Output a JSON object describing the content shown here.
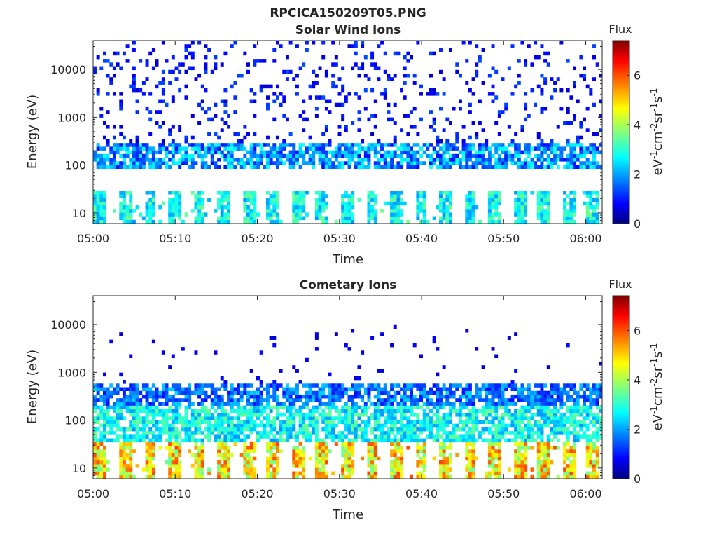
{
  "figure_title": "RPCICA150209T05.PNG",
  "chart_data": [
    {
      "type": "heatmap",
      "title": "Solar Wind Ions",
      "xlabel": "Time",
      "ylabel": "Energy (eV)",
      "y_scale": "log",
      "ylim": [
        6,
        40000
      ],
      "xlim": [
        "05:00",
        "06:02"
      ],
      "x_ticks": [
        "05:00",
        "05:10",
        "05:20",
        "05:30",
        "05:40",
        "05:50",
        "06:00"
      ],
      "y_ticks": [
        "10",
        "100",
        "1000",
        "10000"
      ],
      "y_tick_values": [
        10,
        100,
        1000,
        10000
      ],
      "colorbar": {
        "title": "Flux",
        "label": "eV-1cm-2sr-1s-1",
        "range": [
          0,
          7.4
        ],
        "ticks": [
          "0",
          "2",
          "4",
          "6"
        ],
        "colormap": "jet"
      },
      "colormap_colors": [
        "#00007f",
        "#0000ff",
        "#00ffff",
        "#ffff00",
        "#ff0000",
        "#7f0000"
      ],
      "description_bands": [
        {
          "energy_range_eV": [
            6,
            30
          ],
          "flux_range": [
            2.0,
            3.6
          ],
          "pattern": "periodic bursts about every 3 min"
        },
        {
          "energy_range_eV": [
            90,
            300
          ],
          "flux_range": [
            1.0,
            3.0
          ],
          "pattern": "dense band"
        },
        {
          "energy_range_eV": [
            300,
            40000
          ],
          "flux_range": [
            0.5,
            1.5
          ],
          "pattern": "sparse scattered pixels"
        }
      ]
    },
    {
      "type": "heatmap",
      "title": "Cometary Ions",
      "xlabel": "Time",
      "ylabel": "Energy (eV)",
      "y_scale": "log",
      "ylim": [
        6,
        40000
      ],
      "xlim": [
        "05:00",
        "06:02"
      ],
      "x_ticks": [
        "05:00",
        "05:10",
        "05:20",
        "05:30",
        "05:40",
        "05:50",
        "06:00"
      ],
      "y_ticks": [
        "10",
        "100",
        "1000",
        "10000"
      ],
      "y_tick_values": [
        10,
        100,
        1000,
        10000
      ],
      "colorbar": {
        "title": "Flux",
        "label": "eV-1cm-2sr-1s-1",
        "range": [
          0,
          7.4
        ],
        "ticks": [
          "0",
          "2",
          "4",
          "6"
        ],
        "colormap": "jet"
      },
      "colormap_colors": [
        "#00007f",
        "#0000ff",
        "#00ffff",
        "#ffff00",
        "#ff0000",
        "#7f0000"
      ],
      "description_bands": [
        {
          "energy_range_eV": [
            6,
            35
          ],
          "flux_range": [
            3.5,
            6.0
          ],
          "pattern": "periodic bursts about every 3 min"
        },
        {
          "energy_range_eV": [
            35,
            200
          ],
          "flux_range": [
            2.0,
            3.6
          ],
          "pattern": "broad band"
        },
        {
          "energy_range_eV": [
            200,
            600
          ],
          "flux_range": [
            1.0,
            2.5
          ],
          "pattern": "upper band"
        },
        {
          "energy_range_eV": [
            600,
            10000
          ],
          "flux_range": [
            0.5,
            1.0
          ],
          "pattern": "isolated pixels"
        }
      ]
    }
  ]
}
